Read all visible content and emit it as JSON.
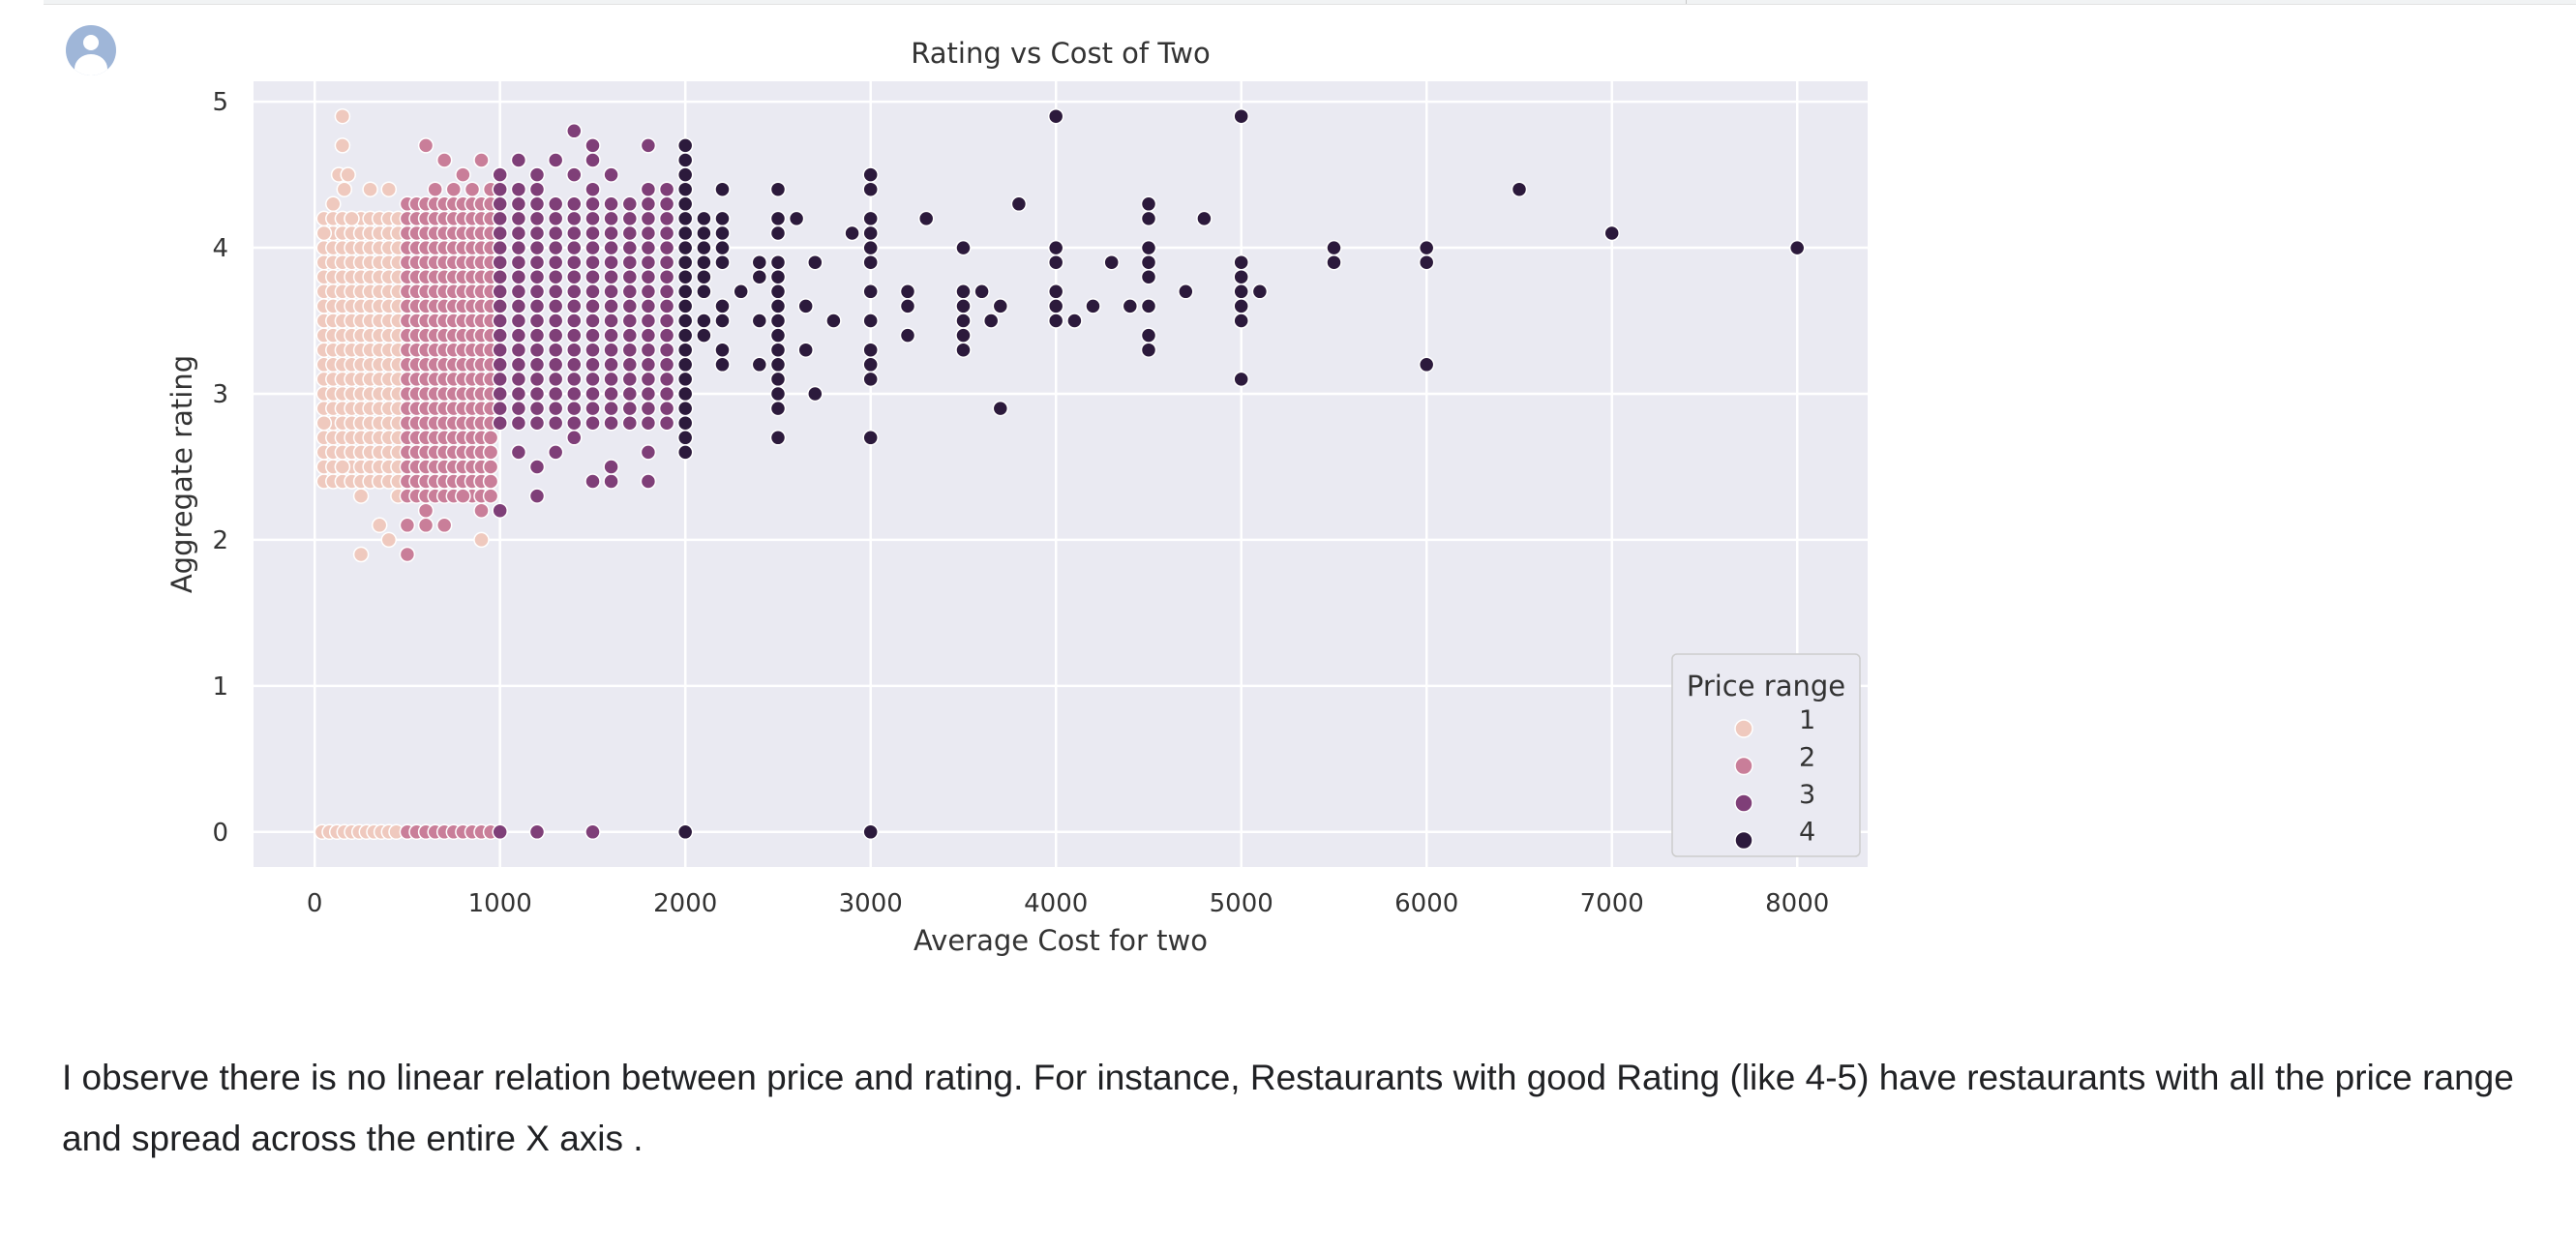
{
  "output_cell": {
    "avatar_icon": "user-avatar-icon",
    "note_text": "I observe there is no linear relation between price and rating. For instance, Restaurants with good Rating (like 4-5) have restaurants with all the price range and spread across the entire X axis ."
  },
  "chart_data": {
    "type": "scatter",
    "title": "Rating vs Cost of Two",
    "xlabel": "Average Cost for two",
    "ylabel": "Aggregate rating",
    "xlim": [
      -330,
      8380
    ],
    "ylim": [
      -0.24,
      5.14
    ],
    "x_ticks": [
      0,
      1000,
      2000,
      3000,
      4000,
      5000,
      6000,
      7000,
      8000
    ],
    "y_ticks": [
      0,
      1,
      2,
      3,
      4,
      5
    ],
    "grid": true,
    "legend": {
      "title": "Price range",
      "placement": "lower-right",
      "entries": [
        "1",
        "2",
        "3",
        "4"
      ]
    },
    "colors": {
      "background": "#eaeaf2",
      "grid": "#ffffff",
      "1": "#efc9be",
      "2": "#c97e99",
      "3": "#7f3f78",
      "4": "#2c1a3c"
    },
    "series": [
      {
        "name": "1",
        "points": [
          [
            150,
            4.9
          ],
          [
            150,
            4.7
          ],
          [
            130,
            4.5
          ],
          [
            180,
            4.5
          ],
          [
            160,
            4.4
          ],
          [
            100,
            4.3
          ],
          [
            200,
            4.2
          ],
          [
            50,
            4.1
          ],
          [
            300,
            4.4
          ],
          [
            400,
            4.4
          ],
          [
            250,
            2.3
          ],
          [
            250,
            1.9
          ],
          [
            350,
            2.1
          ],
          [
            400,
            2.0
          ],
          [
            450,
            2.3
          ],
          [
            50,
            2.8
          ],
          [
            150,
            2.5
          ],
          [
            900,
            2.0
          ],
          [
            40,
            0
          ],
          [
            80,
            0
          ],
          [
            120,
            0
          ],
          [
            160,
            0
          ],
          [
            200,
            0
          ],
          [
            240,
            0
          ],
          [
            280,
            0
          ],
          [
            320,
            0
          ],
          [
            360,
            0
          ],
          [
            400,
            0
          ],
          [
            440,
            0
          ]
        ],
        "block": {
          "x_min": 50,
          "x_max": 480,
          "x_step": 50,
          "y_min": 2.4,
          "y_max": 4.2,
          "y_step": 0.1
        }
      },
      {
        "name": "2",
        "points": [
          [
            600,
            4.7
          ],
          [
            700,
            4.6
          ],
          [
            800,
            4.5
          ],
          [
            900,
            4.6
          ],
          [
            650,
            4.4
          ],
          [
            750,
            4.4
          ],
          [
            850,
            4.4
          ],
          [
            950,
            4.4
          ],
          [
            500,
            2.1
          ],
          [
            600,
            2.1
          ],
          [
            700,
            2.1
          ],
          [
            500,
            1.9
          ],
          [
            600,
            2.2
          ],
          [
            800,
            2.3
          ],
          [
            900,
            2.2
          ],
          [
            500,
            0
          ],
          [
            550,
            0
          ],
          [
            600,
            0
          ],
          [
            650,
            0
          ],
          [
            700,
            0
          ],
          [
            750,
            0
          ],
          [
            800,
            0
          ],
          [
            850,
            0
          ],
          [
            900,
            0
          ],
          [
            950,
            0
          ]
        ],
        "block": {
          "x_min": 500,
          "x_max": 950,
          "x_step": 50,
          "y_min": 2.3,
          "y_max": 4.3,
          "y_step": 0.1
        }
      },
      {
        "name": "3",
        "points": [
          [
            1400,
            4.8
          ],
          [
            1500,
            4.7
          ],
          [
            1800,
            4.7
          ],
          [
            1500,
            4.6
          ],
          [
            1100,
            4.6
          ],
          [
            1300,
            4.6
          ],
          [
            1000,
            4.5
          ],
          [
            1200,
            4.5
          ],
          [
            1400,
            4.5
          ],
          [
            1600,
            4.5
          ],
          [
            1000,
            4.4
          ],
          [
            1100,
            4.4
          ],
          [
            1200,
            4.4
          ],
          [
            1500,
            4.4
          ],
          [
            1800,
            4.4
          ],
          [
            1900,
            4.4
          ],
          [
            1000,
            2.2
          ],
          [
            1100,
            2.6
          ],
          [
            1200,
            2.3
          ],
          [
            1200,
            2.5
          ],
          [
            1500,
            2.4
          ],
          [
            1600,
            2.4
          ],
          [
            1600,
            2.5
          ],
          [
            1800,
            2.4
          ],
          [
            1800,
            2.6
          ],
          [
            1400,
            2.7
          ],
          [
            1700,
            2.9
          ],
          [
            1900,
            2.8
          ],
          [
            1300,
            2.6
          ],
          [
            1000,
            0
          ],
          [
            1200,
            0
          ],
          [
            1500,
            0
          ]
        ],
        "block": {
          "x_min": 1000,
          "x_max": 1950,
          "x_step": 100,
          "y_min": 2.8,
          "y_max": 4.3,
          "y_step": 0.1
        }
      },
      {
        "name": "4",
        "points": [
          [
            2000,
            4.7
          ],
          [
            2000,
            4.6
          ],
          [
            2000,
            4.5
          ],
          [
            2000,
            4.4
          ],
          [
            2000,
            4.3
          ],
          [
            2000,
            4.2
          ],
          [
            2000,
            4.1
          ],
          [
            2000,
            4.0
          ],
          [
            2000,
            3.9
          ],
          [
            2000,
            3.8
          ],
          [
            2000,
            3.7
          ],
          [
            2000,
            3.6
          ],
          [
            2000,
            3.5
          ],
          [
            2000,
            3.4
          ],
          [
            2000,
            3.3
          ],
          [
            2000,
            3.2
          ],
          [
            2000,
            3.1
          ],
          [
            2000,
            3.0
          ],
          [
            2000,
            2.9
          ],
          [
            2000,
            2.8
          ],
          [
            2000,
            2.7
          ],
          [
            2000,
            2.6
          ],
          [
            2100,
            4.2
          ],
          [
            2100,
            4.1
          ],
          [
            2100,
            4.0
          ],
          [
            2100,
            3.9
          ],
          [
            2100,
            3.8
          ],
          [
            2100,
            3.7
          ],
          [
            2100,
            3.5
          ],
          [
            2100,
            3.4
          ],
          [
            2200,
            4.4
          ],
          [
            2200,
            4.2
          ],
          [
            2200,
            4.1
          ],
          [
            2200,
            4.0
          ],
          [
            2200,
            3.9
          ],
          [
            2200,
            3.6
          ],
          [
            2200,
            3.5
          ],
          [
            2200,
            3.3
          ],
          [
            2200,
            3.2
          ],
          [
            2300,
            3.7
          ],
          [
            2400,
            3.9
          ],
          [
            2400,
            3.8
          ],
          [
            2400,
            3.5
          ],
          [
            2400,
            3.2
          ],
          [
            2500,
            4.4
          ],
          [
            2500,
            4.2
          ],
          [
            2500,
            4.1
          ],
          [
            2500,
            3.9
          ],
          [
            2500,
            3.8
          ],
          [
            2500,
            3.7
          ],
          [
            2500,
            3.6
          ],
          [
            2500,
            3.5
          ],
          [
            2500,
            3.4
          ],
          [
            2500,
            3.3
          ],
          [
            2500,
            3.2
          ],
          [
            2500,
            3.1
          ],
          [
            2500,
            3.0
          ],
          [
            2500,
            2.9
          ],
          [
            2500,
            2.7
          ],
          [
            2600,
            4.2
          ],
          [
            2650,
            3.6
          ],
          [
            2650,
            3.3
          ],
          [
            2700,
            3.9
          ],
          [
            2700,
            3.0
          ],
          [
            2800,
            3.5
          ],
          [
            2900,
            4.1
          ],
          [
            3000,
            4.5
          ],
          [
            3000,
            4.4
          ],
          [
            3000,
            4.2
          ],
          [
            3000,
            4.1
          ],
          [
            3000,
            4.0
          ],
          [
            3000,
            3.9
          ],
          [
            3000,
            3.7
          ],
          [
            3000,
            3.5
          ],
          [
            3000,
            3.3
          ],
          [
            3000,
            3.2
          ],
          [
            3000,
            3.1
          ],
          [
            3000,
            2.7
          ],
          [
            3200,
            3.7
          ],
          [
            3200,
            3.6
          ],
          [
            3200,
            3.4
          ],
          [
            3300,
            4.2
          ],
          [
            3500,
            4.0
          ],
          [
            3500,
            3.7
          ],
          [
            3500,
            3.6
          ],
          [
            3500,
            3.5
          ],
          [
            3500,
            3.4
          ],
          [
            3500,
            3.3
          ],
          [
            3600,
            3.7
          ],
          [
            3650,
            3.5
          ],
          [
            3700,
            3.6
          ],
          [
            3700,
            2.9
          ],
          [
            3800,
            4.3
          ],
          [
            4000,
            4.9
          ],
          [
            4000,
            4.0
          ],
          [
            4000,
            3.9
          ],
          [
            4000,
            3.7
          ],
          [
            4000,
            3.6
          ],
          [
            4000,
            3.5
          ],
          [
            4100,
            3.5
          ],
          [
            4200,
            3.6
          ],
          [
            4300,
            3.9
          ],
          [
            4400,
            3.6
          ],
          [
            4500,
            4.3
          ],
          [
            4500,
            4.2
          ],
          [
            4500,
            4.0
          ],
          [
            4500,
            3.9
          ],
          [
            4500,
            3.8
          ],
          [
            4500,
            3.6
          ],
          [
            4500,
            3.4
          ],
          [
            4500,
            3.3
          ],
          [
            4700,
            3.7
          ],
          [
            4800,
            4.2
          ],
          [
            5000,
            4.9
          ],
          [
            5000,
            3.9
          ],
          [
            5000,
            3.8
          ],
          [
            5000,
            3.7
          ],
          [
            5000,
            3.6
          ],
          [
            5000,
            3.5
          ],
          [
            5000,
            3.1
          ],
          [
            5100,
            3.7
          ],
          [
            5500,
            4.0
          ],
          [
            5500,
            3.9
          ],
          [
            6000,
            4.0
          ],
          [
            6000,
            3.9
          ],
          [
            6000,
            3.2
          ],
          [
            6500,
            4.4
          ],
          [
            7000,
            4.1
          ],
          [
            8000,
            4.0
          ],
          [
            2000,
            0
          ],
          [
            3000,
            0
          ]
        ]
      }
    ]
  }
}
